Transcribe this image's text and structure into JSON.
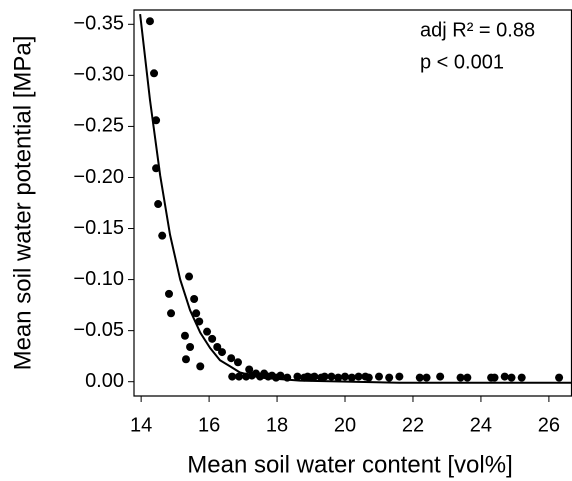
{
  "chart_data": {
    "type": "scatter",
    "xlabel": "Mean soil water content [vol%]",
    "ylabel": "Mean soil water potential [MPa]",
    "annotations": [
      "adj R² = 0.88",
      "p < 0.001"
    ],
    "xlim": [
      13.79,
      26.68
    ],
    "ylim": [
      0.014,
      -0.364
    ],
    "xticks": [
      14,
      16,
      18,
      20,
      22,
      24,
      26
    ],
    "yticks": [
      {
        "value": 0,
        "label": "0.00"
      },
      {
        "value": -0.05,
        "label": "−0.05"
      },
      {
        "value": -0.1,
        "label": "−0.10"
      },
      {
        "value": -0.15,
        "label": "−0.15"
      },
      {
        "value": -0.2,
        "label": "−0.20"
      },
      {
        "value": -0.25,
        "label": "−0.25"
      },
      {
        "value": -0.3,
        "label": "−0.30"
      },
      {
        "value": -0.35,
        "label": "−0.35"
      }
    ],
    "grid": false,
    "series": [
      {
        "type": "scatter",
        "color": "#000000",
        "x": [
          14.26,
          14.38,
          14.44,
          14.44,
          14.5,
          14.62,
          14.82,
          14.88,
          15.29,
          15.32,
          15.41,
          15.44,
          15.56,
          15.62,
          15.71,
          15.74,
          15.94,
          16.09,
          16.24,
          16.38,
          16.65,
          16.68,
          16.85,
          16.88,
          17.09,
          17.18,
          17.26,
          17.38,
          17.5,
          17.62,
          17.74,
          17.85,
          17.97,
          18.1,
          18.3,
          18.6,
          18.8,
          18.9,
          19.0,
          19.1,
          19.3,
          19.4,
          19.6,
          19.8,
          20.0,
          20.2,
          20.4,
          20.6,
          20.7,
          21.0,
          21.3,
          21.6,
          22.2,
          22.4,
          22.8,
          23.4,
          23.6,
          24.3,
          24.4,
          24.7,
          24.9,
          25.2,
          26.3
        ],
        "values": [
          -0.353,
          -0.302,
          -0.256,
          -0.209,
          -0.174,
          -0.143,
          -0.086,
          -0.067,
          -0.045,
          -0.022,
          -0.103,
          -0.034,
          -0.081,
          -0.067,
          -0.059,
          -0.015,
          -0.049,
          -0.042,
          -0.034,
          -0.029,
          -0.023,
          -0.005,
          -0.019,
          -0.005,
          -0.005,
          -0.012,
          -0.006,
          -0.008,
          -0.005,
          -0.008,
          -0.005,
          -0.006,
          -0.004,
          -0.006,
          -0.004,
          -0.005,
          -0.004,
          -0.005,
          -0.004,
          -0.005,
          -0.004,
          -0.005,
          -0.005,
          -0.004,
          -0.005,
          -0.004,
          -0.005,
          -0.005,
          -0.004,
          -0.005,
          -0.004,
          -0.005,
          -0.004,
          -0.004,
          -0.005,
          -0.004,
          -0.004,
          -0.004,
          -0.004,
          -0.005,
          -0.004,
          -0.004,
          -0.004
        ]
      },
      {
        "type": "line",
        "color": "#000000",
        "x": [
          13.97,
          14.26,
          14.56,
          14.85,
          15.15,
          15.44,
          15.74,
          16.03,
          16.32,
          16.62,
          16.91,
          17.5,
          18.68,
          21.6,
          26.65
        ],
        "values": [
          -0.36,
          -0.276,
          -0.202,
          -0.144,
          -0.1,
          -0.07,
          -0.048,
          -0.033,
          -0.021,
          -0.015,
          -0.009,
          -0.004,
          -0.001,
          0.001,
          0.001
        ]
      }
    ]
  }
}
